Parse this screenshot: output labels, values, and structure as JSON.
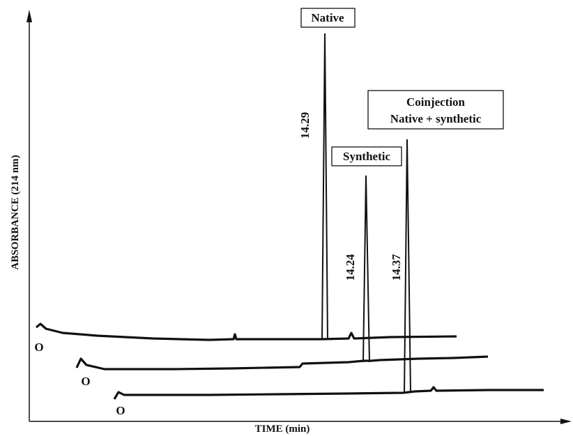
{
  "figure": {
    "y_axis_label": "ABSORBANCE (214 nm)",
    "x_axis_label": "TIME (min)",
    "traces": [
      {
        "name": "Native",
        "peak_label": "14.29",
        "origin_label": "O"
      },
      {
        "name": "Synthetic",
        "peak_label": "14.24",
        "origin_label": "O"
      },
      {
        "name_lines": [
          "Coinjection",
          "Native + synthetic"
        ],
        "peak_label": "14.37",
        "origin_label": "O"
      }
    ]
  }
}
